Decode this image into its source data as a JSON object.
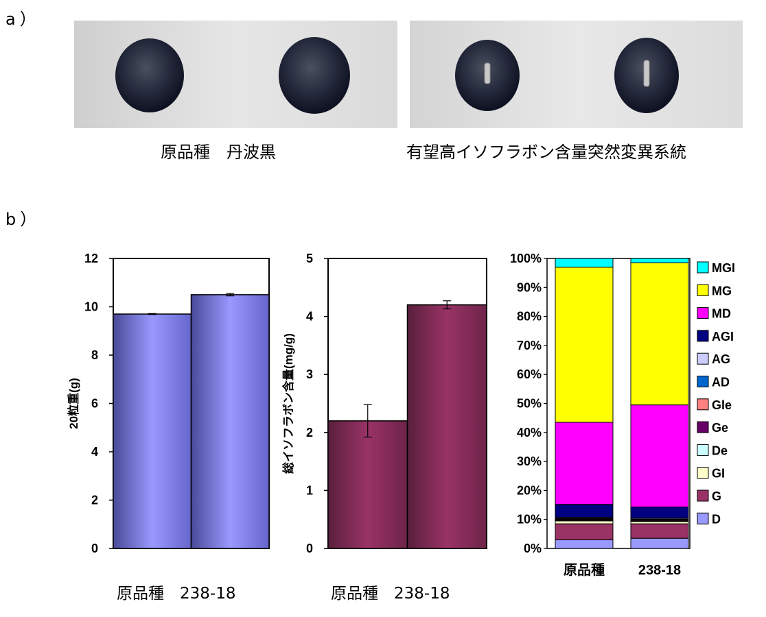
{
  "panel_a": {
    "label": "a）",
    "caption_left": "原品種　丹波黒",
    "caption_right": "有望高イソフラボン含量突然変異系統"
  },
  "panel_b": {
    "label": "b）"
  },
  "colors": {
    "weight_bar": "#9999ff",
    "isoflavone_bar": "#993366",
    "components": {
      "MGI": "#00ffff",
      "MG": "#ffff00",
      "MD": "#ff00ff",
      "AGI": "#000080",
      "AG": "#ccccff",
      "AD": "#0066cc",
      "Gle": "#ff8080",
      "Ge": "#660066",
      "De": "#ccffff",
      "GI": "#ffffcc",
      "G": "#993366",
      "D": "#9999ff"
    }
  },
  "chart_data": [
    {
      "type": "bar",
      "ylabel": "20粒重(g)",
      "categories": [
        "原品種",
        "238-18"
      ],
      "category_caption": "原品種　238-18",
      "values": [
        9.7,
        10.5
      ],
      "error": [
        0.02,
        0.05
      ],
      "ylim": [
        0,
        12
      ],
      "yticks": [
        "0",
        "2",
        "4",
        "6",
        "8",
        "10",
        "12"
      ]
    },
    {
      "type": "bar",
      "ylabel": "総イソフラボン含量(mg/g)",
      "categories": [
        "原品種",
        "238-18"
      ],
      "category_caption": "原品種　238-18",
      "values": [
        2.2,
        4.2
      ],
      "error": [
        0.28,
        0.07
      ],
      "ylim": [
        0,
        5
      ],
      "yticks": [
        "0",
        "1",
        "2",
        "3",
        "4",
        "5"
      ]
    },
    {
      "type": "bar",
      "stacked": "percent",
      "categories": [
        "原品種",
        "238-18"
      ],
      "category_caption": "原品種　238-18",
      "ylim": [
        0,
        100
      ],
      "yticks": [
        "0%",
        "10%",
        "20%",
        "30%",
        "40%",
        "50%",
        "60%",
        "70%",
        "80%",
        "90%",
        "100%"
      ],
      "legend_position": "right",
      "series": [
        {
          "name": "D",
          "values": [
            3.0,
            3.5
          ]
        },
        {
          "name": "G",
          "values": [
            5.5,
            5.0
          ]
        },
        {
          "name": "GI",
          "values": [
            1.0,
            0.8
          ]
        },
        {
          "name": "De",
          "values": [
            0.2,
            0.2
          ]
        },
        {
          "name": "Ge",
          "values": [
            0.3,
            0.3
          ]
        },
        {
          "name": "Gle",
          "values": [
            0.2,
            0.2
          ]
        },
        {
          "name": "AD",
          "values": [
            0.2,
            0.2
          ]
        },
        {
          "name": "AG",
          "values": [
            0.3,
            0.3
          ]
        },
        {
          "name": "AGI",
          "values": [
            4.5,
            3.8
          ]
        },
        {
          "name": "MD",
          "values": [
            28.3,
            35.2
          ]
        },
        {
          "name": "MG",
          "values": [
            53.5,
            49.0
          ]
        },
        {
          "name": "MGI",
          "values": [
            3.0,
            1.5
          ]
        }
      ]
    }
  ]
}
